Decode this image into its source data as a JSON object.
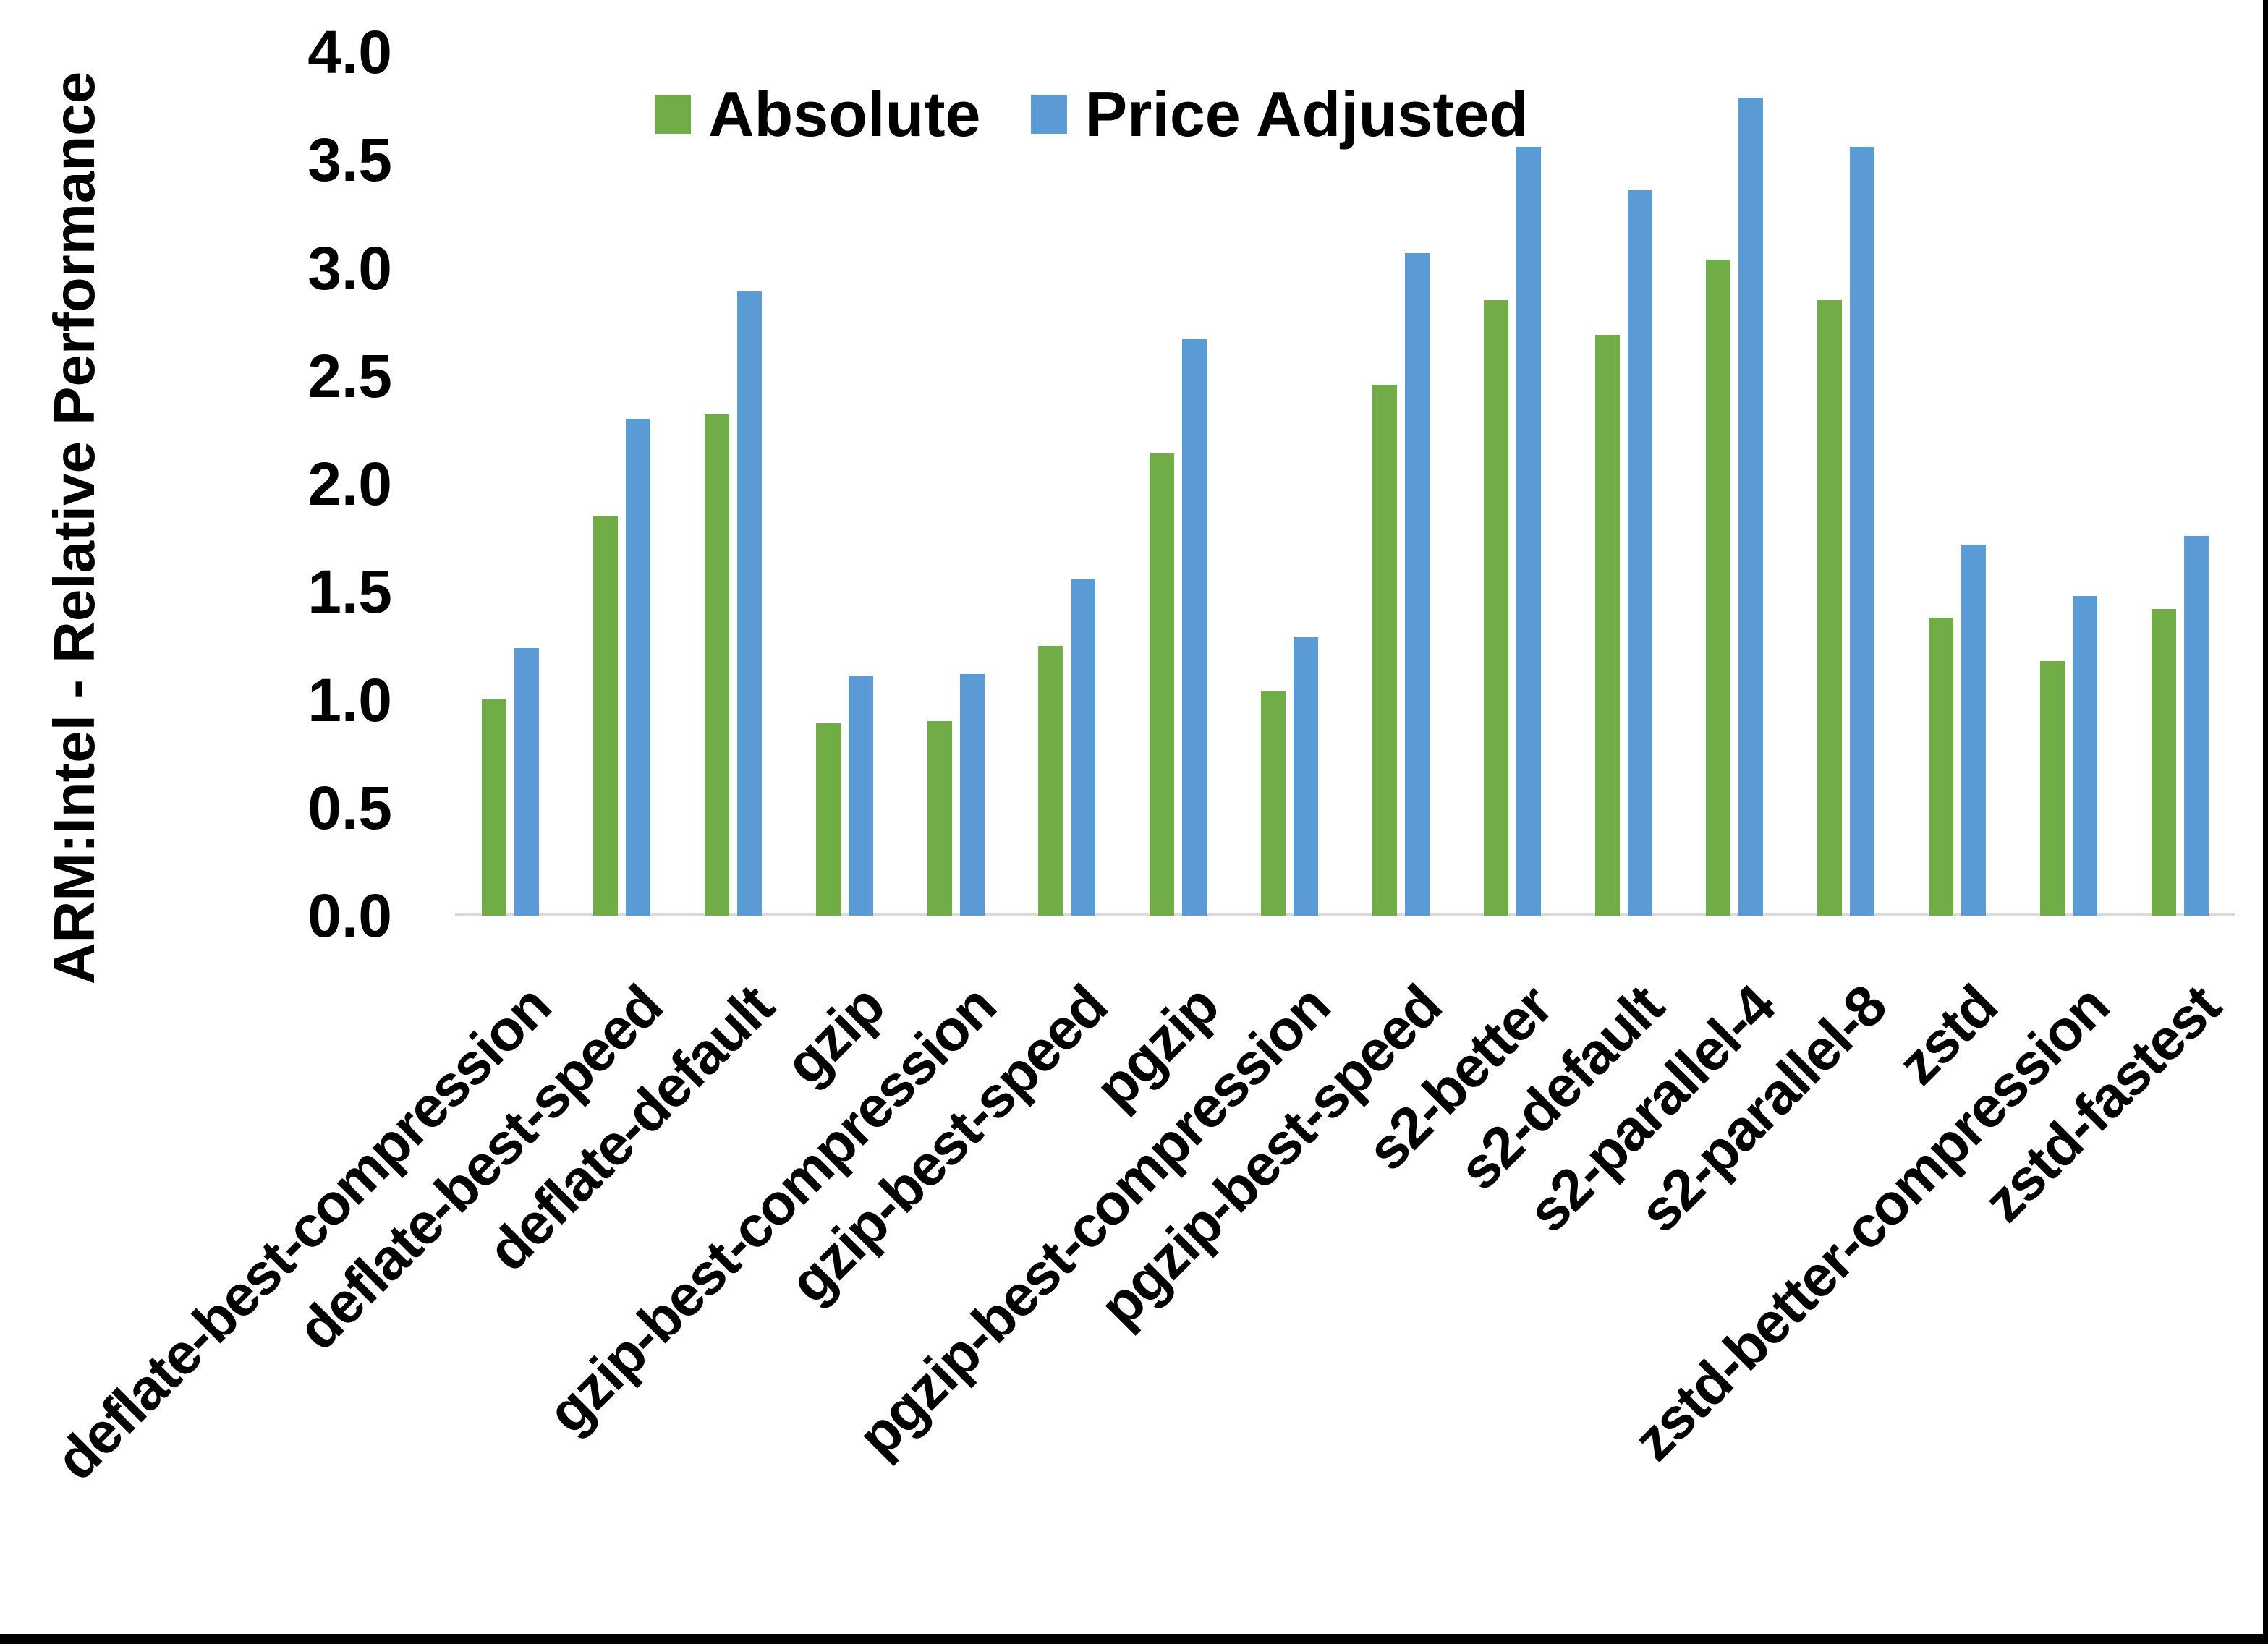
{
  "chart_data": {
    "type": "bar",
    "title": "",
    "xlabel": "",
    "ylabel": "ARM:Intel - Relative Performance",
    "ylim": [
      0.0,
      4.0
    ],
    "ytick_step": 0.5,
    "yticks": [
      "4.0",
      "3.5",
      "3.0",
      "2.5",
      "2.0",
      "1.5",
      "1.0",
      "0.5",
      "0.0"
    ],
    "grid": false,
    "legend_position": "top-center",
    "categories": [
      "deflate-best-compression",
      "deflate-best-speed",
      "deflate-default",
      "gzip",
      "gzip-best-compression",
      "gzip-best-speed",
      "pgzip",
      "pgzip-best-compression",
      "pgzip-best-speed",
      "s2-better",
      "s2-default",
      "s2-parallel-4",
      "s2-parallel-8",
      "zstd",
      "zstd-better-compression",
      "zstd-fastest"
    ],
    "series": [
      {
        "name": "Absolute",
        "color": "#70AD47",
        "values": [
          1.0,
          1.85,
          2.32,
          0.89,
          0.9,
          1.25,
          2.14,
          1.04,
          2.46,
          2.85,
          2.69,
          3.04,
          2.85,
          1.38,
          1.18,
          1.42
        ]
      },
      {
        "name": "Price Adjusted",
        "color": "#5B9BD5",
        "values": [
          1.24,
          2.3,
          2.89,
          1.11,
          1.12,
          1.56,
          2.67,
          1.29,
          3.07,
          3.56,
          3.36,
          3.79,
          3.56,
          1.72,
          1.48,
          1.76
        ]
      }
    ],
    "axis_line_color": "#D9D9D9",
    "text_color": "#000000"
  }
}
